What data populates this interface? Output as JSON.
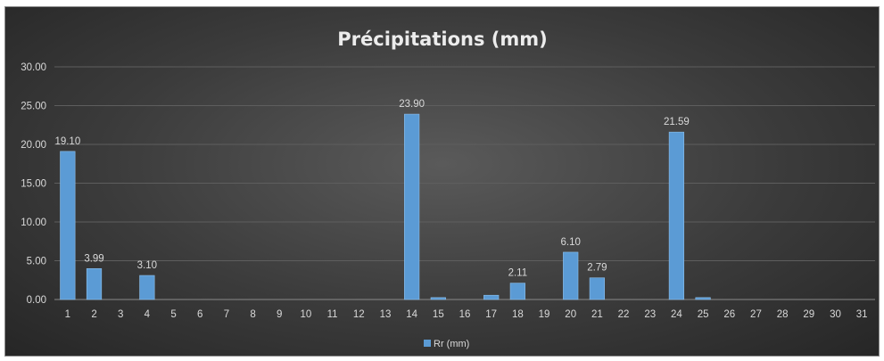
{
  "chart_data": {
    "type": "bar",
    "title": "Précipitations (mm)",
    "xlabel": "",
    "ylabel": "",
    "categories": [
      "1",
      "2",
      "3",
      "4",
      "5",
      "6",
      "7",
      "8",
      "9",
      "10",
      "11",
      "12",
      "13",
      "14",
      "15",
      "16",
      "17",
      "18",
      "19",
      "20",
      "21",
      "22",
      "23",
      "24",
      "25",
      "26",
      "27",
      "28",
      "29",
      "30",
      "31"
    ],
    "series": [
      {
        "name": "Rr (mm)",
        "color": "#5b9bd5",
        "values": [
          19.1,
          3.99,
          0,
          3.1,
          0,
          0,
          0,
          0,
          0,
          0,
          0,
          0,
          0,
          23.9,
          0.25,
          0,
          0.55,
          2.11,
          0,
          6.1,
          2.79,
          0,
          0,
          21.59,
          0.25,
          0,
          0,
          0,
          0,
          0,
          0
        ]
      }
    ],
    "data_labels": [
      {
        "category": "1",
        "text": "19.10"
      },
      {
        "category": "2",
        "text": "3.99"
      },
      {
        "category": "4",
        "text": "3.10"
      },
      {
        "category": "14",
        "text": "23.90"
      },
      {
        "category": "18",
        "text": "2.11"
      },
      {
        "category": "20",
        "text": "6.10"
      },
      {
        "category": "21",
        "text": "2.79"
      },
      {
        "category": "24",
        "text": "21.59"
      }
    ],
    "y_ticks": [
      "0.00",
      "5.00",
      "10.00",
      "15.00",
      "20.00",
      "25.00",
      "30.00"
    ],
    "ylim": [
      0,
      30
    ],
    "grid": true,
    "legend_position": "bottom"
  }
}
